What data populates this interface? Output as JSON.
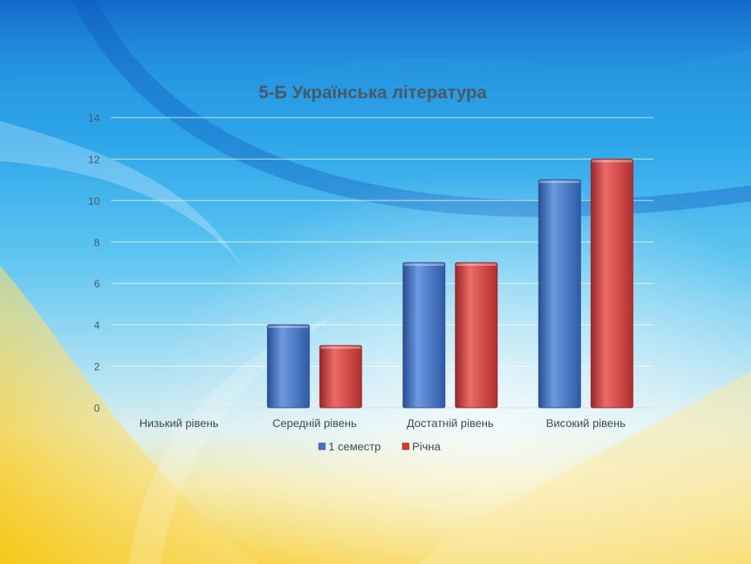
{
  "chart_data": {
    "type": "bar",
    "title": "5-Б Українська література",
    "categories": [
      "Низький рівень",
      "Середній рівень",
      "Достатній рівень",
      "Високий рівень"
    ],
    "series": [
      {
        "name": "1 семестр",
        "values": [
          0,
          4,
          7,
          11
        ]
      },
      {
        "name": "Річна",
        "values": [
          0,
          3,
          7,
          12
        ]
      }
    ],
    "xlabel": "",
    "ylabel": "",
    "ylim": [
      0,
      14
    ],
    "yticks": [
      0,
      2,
      4,
      6,
      8,
      10,
      12,
      14
    ],
    "grid": true,
    "legend_position": "bottom",
    "colors": {
      "series": [
        "#3f73c6",
        "#d03a38"
      ],
      "series_dark": [
        "#2a4f93",
        "#98272a"
      ],
      "series_light": [
        "#6c99df",
        "#ec6b67"
      ],
      "gridline": "#ffffff",
      "text": "#4a5966"
    }
  }
}
